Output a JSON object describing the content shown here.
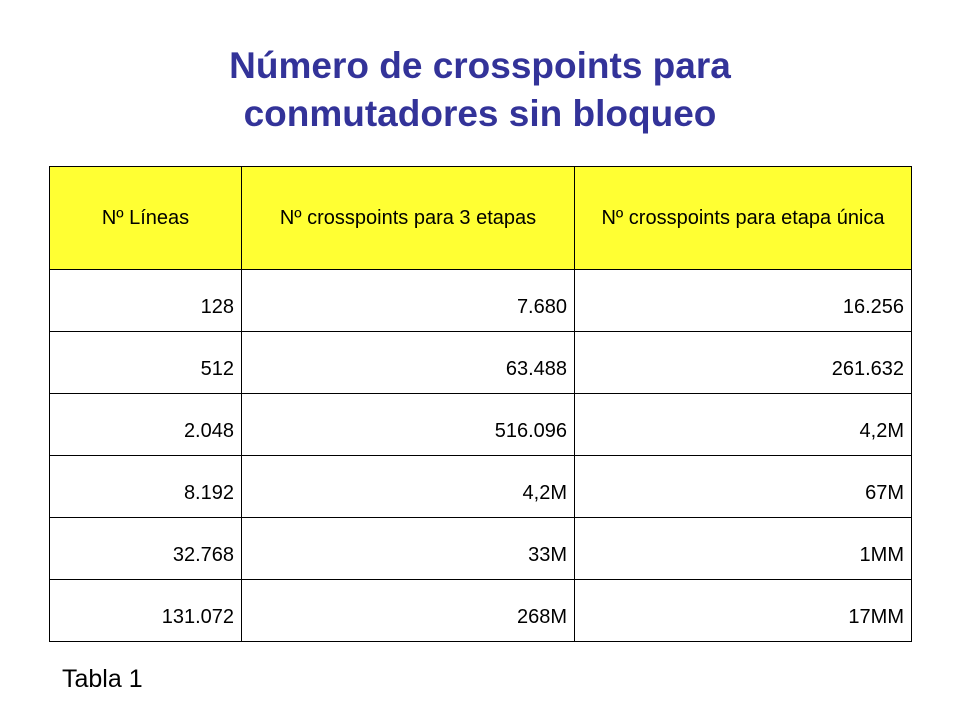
{
  "title": {
    "line1": "Número de crosspoints para",
    "line2": "conmutadores sin bloqueo"
  },
  "table": {
    "headers": [
      "Nº Líneas",
      "Nº crosspoints para 3 etapas",
      "Nº crosspoints para etapa única"
    ],
    "rows": [
      [
        "128",
        "7.680",
        "16.256"
      ],
      [
        "512",
        "63.488",
        "261.632"
      ],
      [
        "2.048",
        "516.096",
        "4,2M"
      ],
      [
        "8.192",
        "4,2M",
        "67M"
      ],
      [
        "32.768",
        "33M",
        "1MM"
      ],
      [
        "131.072",
        "268M",
        "17MM"
      ]
    ],
    "header_bg": "#ffff33",
    "border_color": "#000000"
  },
  "caption": "Tabla 1",
  "title_color": "#333399"
}
